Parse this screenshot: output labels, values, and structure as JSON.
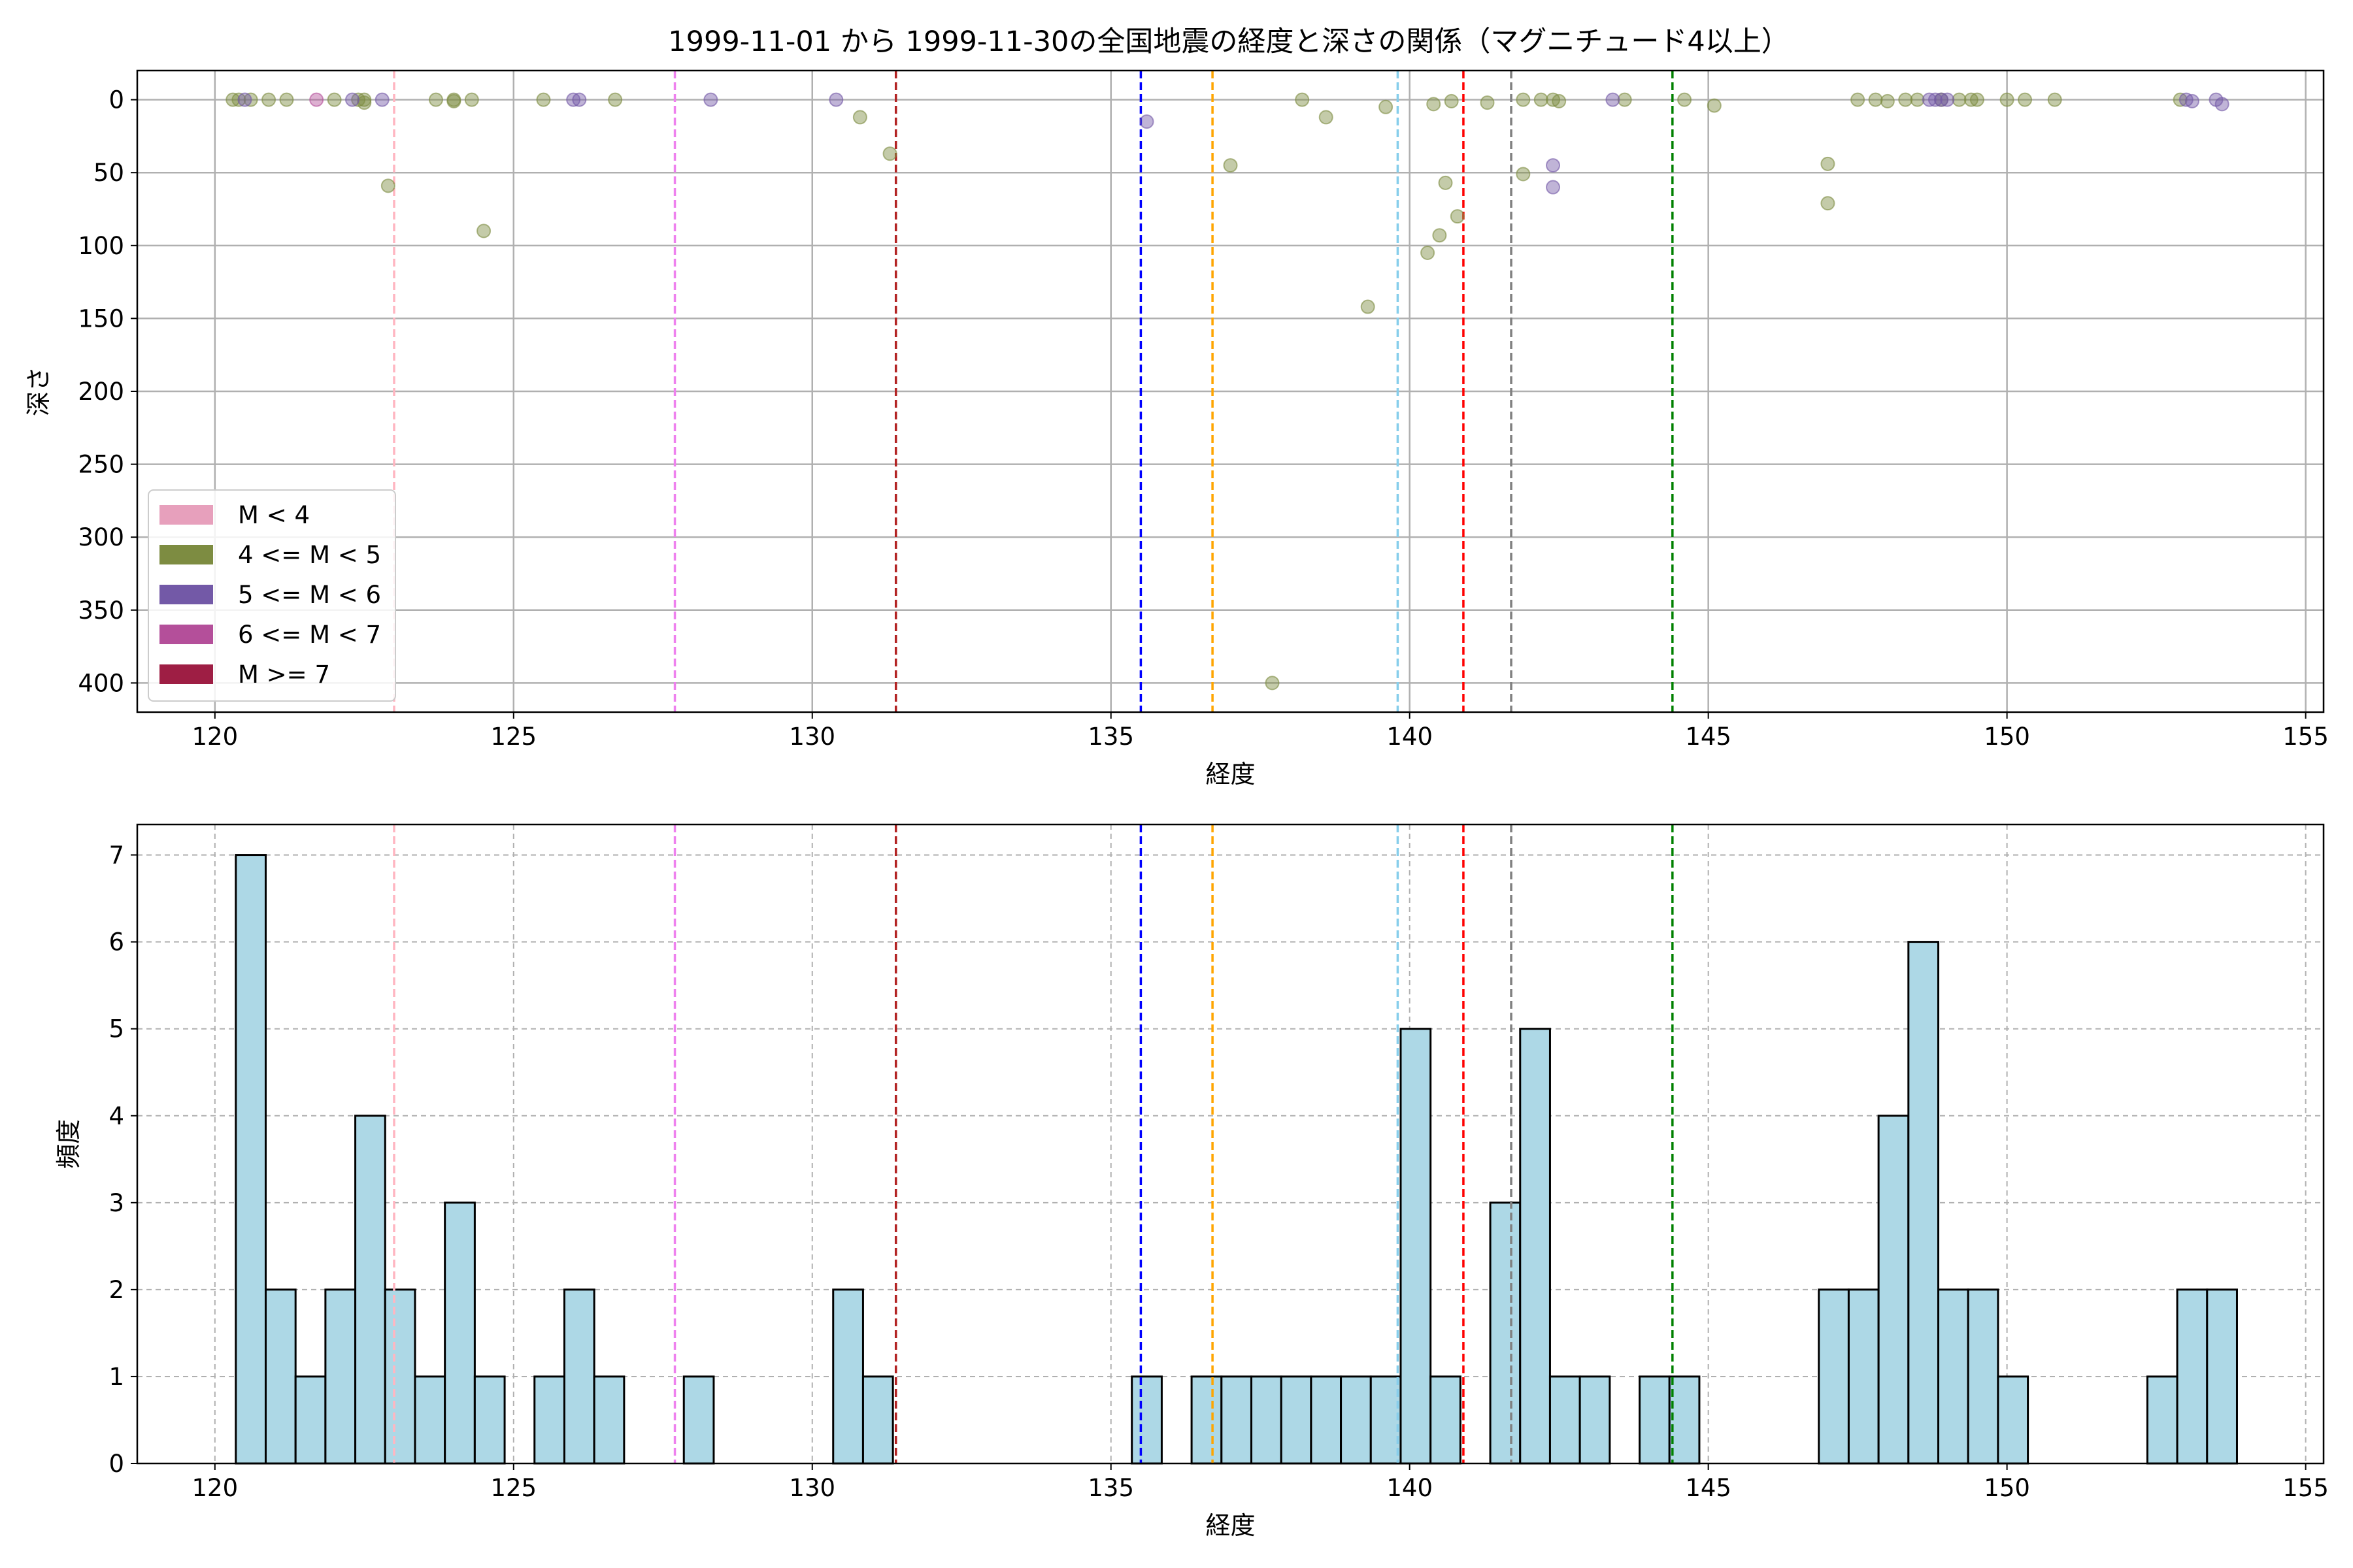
{
  "title": "1999-11-01 から 1999-11-30の全国地震の経度と深さの関係（マグニチュード4以上）",
  "colors": {
    "hist_fill": "#add8e6",
    "hist_edge": "#000000",
    "grid": "#b0b0b0"
  },
  "chart_data": [
    {
      "type": "scatter",
      "xlabel": "経度",
      "ylabel": "深さ",
      "xlim": [
        118.7,
        155.3
      ],
      "ylim": [
        420,
        -20
      ],
      "y_inverted": true,
      "xticks": [
        120,
        125,
        130,
        135,
        140,
        145,
        150,
        155
      ],
      "yticks": [
        0,
        50,
        100,
        150,
        200,
        250,
        300,
        350,
        400
      ],
      "grid": "solid",
      "legend_position": "lower-left",
      "legend": [
        {
          "label": "M < 4",
          "color": "#e7a0bc"
        },
        {
          "label": "4 <= M < 5",
          "color": "#7d8c41"
        },
        {
          "label": "5 <= M < 6",
          "color": "#7359a7"
        },
        {
          "label": "6 <= M < 7",
          "color": "#b44f9a"
        },
        {
          "label": "M >= 7",
          "color": "#9e1e44"
        }
      ],
      "reference_lines": [
        {
          "x": 123.0,
          "color": "#ffb6c1"
        },
        {
          "x": 127.7,
          "color": "#ee82ee"
        },
        {
          "x": 131.4,
          "color": "#b22222"
        },
        {
          "x": 135.5,
          "color": "#0000ff"
        },
        {
          "x": 136.7,
          "color": "#ffa500"
        },
        {
          "x": 139.8,
          "color": "#87ceeb"
        },
        {
          "x": 140.9,
          "color": "#ff0000"
        },
        {
          "x": 141.7,
          "color": "#808080"
        },
        {
          "x": 144.4,
          "color": "#008000"
        }
      ],
      "series": [
        {
          "magnitude_class": "4 <= M < 5",
          "color": "#7d8c41",
          "points": [
            [
              120.3,
              0
            ],
            [
              120.4,
              0
            ],
            [
              120.6,
              0
            ],
            [
              120.9,
              0
            ],
            [
              121.2,
              0
            ],
            [
              122.0,
              0
            ],
            [
              122.4,
              0
            ],
            [
              122.5,
              0
            ],
            [
              122.5,
              2
            ],
            [
              122.9,
              59
            ],
            [
              123.7,
              0
            ],
            [
              124.0,
              0
            ],
            [
              124.0,
              1
            ],
            [
              124.3,
              0
            ],
            [
              124.5,
              90
            ],
            [
              125.5,
              0
            ],
            [
              126.7,
              0
            ],
            [
              130.8,
              12
            ],
            [
              131.3,
              37
            ],
            [
              137.0,
              45
            ],
            [
              137.7,
              400
            ],
            [
              138.2,
              0
            ],
            [
              138.6,
              12
            ],
            [
              139.3,
              142
            ],
            [
              139.6,
              5
            ],
            [
              140.3,
              105
            ],
            [
              140.4,
              3
            ],
            [
              140.5,
              93
            ],
            [
              140.6,
              57
            ],
            [
              140.7,
              1
            ],
            [
              140.8,
              80
            ],
            [
              141.3,
              2
            ],
            [
              141.9,
              0
            ],
            [
              141.9,
              51
            ],
            [
              142.2,
              0
            ],
            [
              142.4,
              0
            ],
            [
              142.5,
              1
            ],
            [
              143.6,
              0
            ],
            [
              144.6,
              0
            ],
            [
              145.1,
              4
            ],
            [
              147.0,
              44
            ],
            [
              147.0,
              71
            ],
            [
              147.5,
              0
            ],
            [
              147.8,
              0
            ],
            [
              148.0,
              1
            ],
            [
              148.3,
              0
            ],
            [
              148.5,
              0
            ],
            [
              148.9,
              0
            ],
            [
              149.2,
              0
            ],
            [
              149.4,
              0
            ],
            [
              149.5,
              0
            ],
            [
              150.0,
              0
            ],
            [
              150.3,
              0
            ],
            [
              150.8,
              0
            ],
            [
              152.9,
              0
            ]
          ]
        },
        {
          "magnitude_class": "5 <= M < 6",
          "color": "#7359a7",
          "points": [
            [
              120.5,
              0
            ],
            [
              122.3,
              0
            ],
            [
              122.8,
              0
            ],
            [
              126.0,
              0
            ],
            [
              126.1,
              0
            ],
            [
              128.3,
              0
            ],
            [
              130.4,
              0
            ],
            [
              135.6,
              15
            ],
            [
              142.4,
              45
            ],
            [
              142.4,
              60
            ],
            [
              143.4,
              0
            ],
            [
              148.7,
              0
            ],
            [
              148.8,
              0
            ],
            [
              148.9,
              0
            ],
            [
              149.0,
              0
            ],
            [
              153.0,
              0
            ],
            [
              153.1,
              1
            ],
            [
              153.5,
              0
            ],
            [
              153.6,
              3
            ]
          ]
        },
        {
          "magnitude_class": "6 <= M < 7",
          "color": "#b44f9a",
          "points": [
            [
              121.7,
              0
            ]
          ]
        }
      ]
    },
    {
      "type": "bar",
      "xlabel": "経度",
      "ylabel": "頻度",
      "xlim": [
        118.7,
        155.3
      ],
      "ylim": [
        0,
        7.35
      ],
      "xticks": [
        120,
        125,
        130,
        135,
        140,
        145,
        150,
        155
      ],
      "yticks": [
        0,
        1,
        2,
        3,
        4,
        5,
        6,
        7
      ],
      "grid": "dashed",
      "bin_start": 120.35,
      "bin_width": 0.5,
      "values": [
        7,
        2,
        1,
        2,
        4,
        2,
        1,
        3,
        1,
        0,
        1,
        2,
        1,
        0,
        0,
        1,
        0,
        0,
        0,
        0,
        2,
        1,
        0,
        0,
        0,
        0,
        0,
        0,
        0,
        0,
        1,
        0,
        1,
        1,
        1,
        1,
        1,
        1,
        1,
        5,
        1,
        0,
        3,
        5,
        1,
        1,
        0,
        1,
        1,
        0,
        0,
        0,
        0,
        2,
        2,
        4,
        6,
        2,
        2,
        1,
        0,
        0,
        0,
        0,
        1,
        2,
        2
      ],
      "reference_lines": [
        {
          "x": 123.0,
          "color": "#ffb6c1"
        },
        {
          "x": 127.7,
          "color": "#ee82ee"
        },
        {
          "x": 131.4,
          "color": "#b22222"
        },
        {
          "x": 135.5,
          "color": "#0000ff"
        },
        {
          "x": 136.7,
          "color": "#ffa500"
        },
        {
          "x": 139.8,
          "color": "#87ceeb"
        },
        {
          "x": 140.9,
          "color": "#ff0000"
        },
        {
          "x": 141.7,
          "color": "#808080"
        },
        {
          "x": 144.4,
          "color": "#008000"
        }
      ]
    }
  ]
}
